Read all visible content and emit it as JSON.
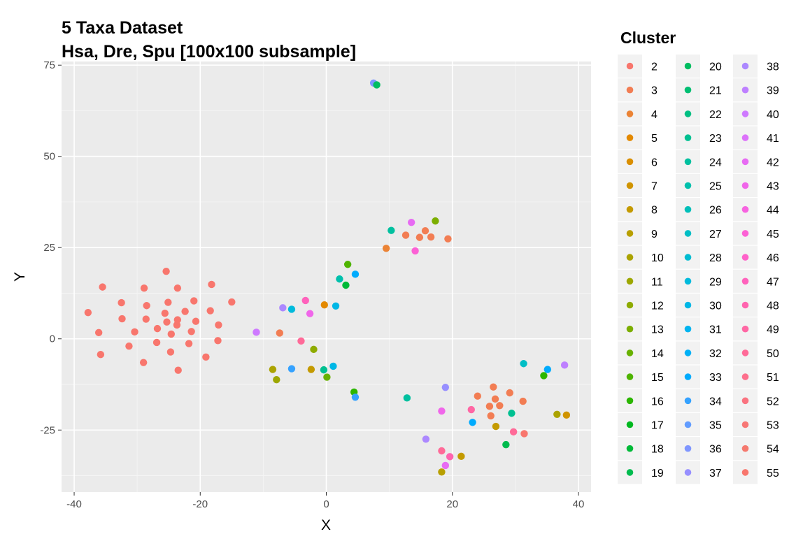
{
  "chart_data": {
    "type": "scatter",
    "title": "5 Taxa Dataset",
    "subtitle": "Hsa, Dre, Spu [100x100 subsample]",
    "xlabel": "X",
    "ylabel": "Y",
    "xlim": [
      -42,
      42
    ],
    "ylim": [
      -42,
      76
    ],
    "xticks": [
      -40,
      -20,
      0,
      20,
      40
    ],
    "yticks": [
      -25,
      0,
      25,
      50,
      75
    ],
    "grid": true,
    "legend_title": "Cluster",
    "legend_placement": "right",
    "clusters": [
      {
        "name": "2",
        "color": "#F8766D"
      },
      {
        "name": "3",
        "color": "#F27D53"
      },
      {
        "name": "4",
        "color": "#EB8335"
      },
      {
        "name": "5",
        "color": "#E38900"
      },
      {
        "name": "6",
        "color": "#DA8F00"
      },
      {
        "name": "7",
        "color": "#D09400"
      },
      {
        "name": "8",
        "color": "#C49A00"
      },
      {
        "name": "9",
        "color": "#B89F00"
      },
      {
        "name": "10",
        "color": "#ABA300"
      },
      {
        "name": "11",
        "color": "#9DA700"
      },
      {
        "name": "12",
        "color": "#8EAB00"
      },
      {
        "name": "13",
        "color": "#7CAE00"
      },
      {
        "name": "14",
        "color": "#68B100"
      },
      {
        "name": "15",
        "color": "#4FB400"
      },
      {
        "name": "16",
        "color": "#2CB600"
      },
      {
        "name": "17",
        "color": "#00B81F"
      },
      {
        "name": "18",
        "color": "#00BA38"
      },
      {
        "name": "19",
        "color": "#00BB4E"
      },
      {
        "name": "20",
        "color": "#00BD61"
      },
      {
        "name": "21",
        "color": "#00BE72"
      },
      {
        "name": "22",
        "color": "#00BF82"
      },
      {
        "name": "23",
        "color": "#00C091"
      },
      {
        "name": "24",
        "color": "#00C09F"
      },
      {
        "name": "25",
        "color": "#00C0AC"
      },
      {
        "name": "26",
        "color": "#00BFB9"
      },
      {
        "name": "27",
        "color": "#00BEC5"
      },
      {
        "name": "28",
        "color": "#00BCD1"
      },
      {
        "name": "29",
        "color": "#00BADC"
      },
      {
        "name": "30",
        "color": "#00B7E6"
      },
      {
        "name": "31",
        "color": "#00B4F0"
      },
      {
        "name": "32",
        "color": "#00B0F6"
      },
      {
        "name": "33",
        "color": "#00ABFD"
      },
      {
        "name": "34",
        "color": "#35A2FF"
      },
      {
        "name": "35",
        "color": "#619CFF"
      },
      {
        "name": "36",
        "color": "#7F96FF"
      },
      {
        "name": "37",
        "color": "#978FFF"
      },
      {
        "name": "38",
        "color": "#AC88FF"
      },
      {
        "name": "39",
        "color": "#BE80FF"
      },
      {
        "name": "40",
        "color": "#CE79FF"
      },
      {
        "name": "41",
        "color": "#DC71FA"
      },
      {
        "name": "42",
        "color": "#E76BF3"
      },
      {
        "name": "43",
        "color": "#F066EA"
      },
      {
        "name": "44",
        "color": "#F763E0"
      },
      {
        "name": "45",
        "color": "#FC61D5"
      },
      {
        "name": "46",
        "color": "#FF61C9"
      },
      {
        "name": "47",
        "color": "#FF62BC"
      },
      {
        "name": "48",
        "color": "#FF64AF"
      },
      {
        "name": "49",
        "color": "#FF67A4"
      },
      {
        "name": "50",
        "color": "#FF6A98"
      },
      {
        "name": "51",
        "color": "#FD6F8C"
      },
      {
        "name": "52",
        "color": "#FA7380"
      },
      {
        "name": "53",
        "color": "#F77775"
      },
      {
        "name": "54",
        "color": "#F5796E"
      },
      {
        "name": "55",
        "color": "#F8766D"
      }
    ],
    "points": [
      {
        "x": -37.8,
        "y": 7.2,
        "c": "#F8766D"
      },
      {
        "x": -35.5,
        "y": 14.2,
        "c": "#F8766D"
      },
      {
        "x": -35.8,
        "y": -4.3,
        "c": "#F8766D"
      },
      {
        "x": -36.1,
        "y": 1.7,
        "c": "#F8766D"
      },
      {
        "x": -32.5,
        "y": 9.9,
        "c": "#F8766D"
      },
      {
        "x": -32.4,
        "y": 5.5,
        "c": "#F8766D"
      },
      {
        "x": -31.3,
        "y": -2.0,
        "c": "#F8766D"
      },
      {
        "x": -30.4,
        "y": 1.9,
        "c": "#F8766D"
      },
      {
        "x": -28.9,
        "y": 13.9,
        "c": "#F8766D"
      },
      {
        "x": -28.5,
        "y": 9.1,
        "c": "#F8766D"
      },
      {
        "x": -28.6,
        "y": 5.4,
        "c": "#F8766D"
      },
      {
        "x": -29.0,
        "y": -6.5,
        "c": "#F8766D"
      },
      {
        "x": -26.8,
        "y": 2.8,
        "c": "#F8766D"
      },
      {
        "x": -26.9,
        "y": -1.0,
        "c": "#F8766D"
      },
      {
        "x": -25.6,
        "y": 7.0,
        "c": "#F8766D"
      },
      {
        "x": -25.1,
        "y": 10.0,
        "c": "#F8766D"
      },
      {
        "x": -25.3,
        "y": 4.6,
        "c": "#F8766D"
      },
      {
        "x": -25.4,
        "y": 18.5,
        "c": "#F8766D"
      },
      {
        "x": -24.6,
        "y": 1.3,
        "c": "#F8766D"
      },
      {
        "x": -24.7,
        "y": -3.6,
        "c": "#F8766D"
      },
      {
        "x": -23.6,
        "y": 13.9,
        "c": "#F8766D"
      },
      {
        "x": -23.6,
        "y": 5.2,
        "c": "#F8766D"
      },
      {
        "x": -23.7,
        "y": 3.8,
        "c": "#F8766D"
      },
      {
        "x": -23.5,
        "y": -8.6,
        "c": "#F8766D"
      },
      {
        "x": -22.4,
        "y": 7.5,
        "c": "#F8766D"
      },
      {
        "x": -21.8,
        "y": -1.3,
        "c": "#F8766D"
      },
      {
        "x": -21.4,
        "y": 2.0,
        "c": "#F8766D"
      },
      {
        "x": -21.0,
        "y": 10.4,
        "c": "#F8766D"
      },
      {
        "x": -20.7,
        "y": 4.8,
        "c": "#F8766D"
      },
      {
        "x": -19.1,
        "y": -5.0,
        "c": "#F8766D"
      },
      {
        "x": -18.4,
        "y": 7.7,
        "c": "#F8766D"
      },
      {
        "x": -18.2,
        "y": 14.9,
        "c": "#F8766D"
      },
      {
        "x": -17.1,
        "y": 3.8,
        "c": "#F8766D"
      },
      {
        "x": -17.2,
        "y": -0.5,
        "c": "#F8766D"
      },
      {
        "x": -15.0,
        "y": 10.1,
        "c": "#F8766D"
      },
      {
        "x": -11.1,
        "y": 1.8,
        "c": "#CE79FF"
      },
      {
        "x": -7.4,
        "y": 1.6,
        "c": "#F27D53"
      },
      {
        "x": -6.9,
        "y": 8.5,
        "c": "#AC88FF"
      },
      {
        "x": -5.5,
        "y": 8.1,
        "c": "#00BADC"
      },
      {
        "x": -3.3,
        "y": 10.5,
        "c": "#FF62BC"
      },
      {
        "x": -2.6,
        "y": 6.9,
        "c": "#F066EA"
      },
      {
        "x": -4.0,
        "y": -0.6,
        "c": "#FF6A98"
      },
      {
        "x": -2.0,
        "y": -2.9,
        "c": "#8EAB00"
      },
      {
        "x": -8.5,
        "y": -8.4,
        "c": "#ABA300"
      },
      {
        "x": -7.9,
        "y": -11.2,
        "c": "#9DA700"
      },
      {
        "x": -5.5,
        "y": -8.2,
        "c": "#35A2FF"
      },
      {
        "x": -2.4,
        "y": -8.4,
        "c": "#C49A00"
      },
      {
        "x": -0.3,
        "y": 9.3,
        "c": "#E38900"
      },
      {
        "x": -0.4,
        "y": -8.5,
        "c": "#00C091"
      },
      {
        "x": 0.1,
        "y": -10.5,
        "c": "#68B100"
      },
      {
        "x": 1.1,
        "y": -7.5,
        "c": "#00B7E6"
      },
      {
        "x": 1.5,
        "y": 9.0,
        "c": "#00B7E6"
      },
      {
        "x": 2.1,
        "y": 16.4,
        "c": "#00C0AC"
      },
      {
        "x": 3.1,
        "y": 14.7,
        "c": "#00BA38"
      },
      {
        "x": 3.4,
        "y": 20.4,
        "c": "#4FB400"
      },
      {
        "x": 4.6,
        "y": 17.7,
        "c": "#00ABFD"
      },
      {
        "x": 4.4,
        "y": -14.6,
        "c": "#2CB600"
      },
      {
        "x": 4.6,
        "y": -16.0,
        "c": "#35A2FF"
      },
      {
        "x": 7.5,
        "y": 70.1,
        "c": "#7F96FF"
      },
      {
        "x": 8.0,
        "y": 69.6,
        "c": "#00BD61"
      },
      {
        "x": 9.5,
        "y": 24.8,
        "c": "#EB8335"
      },
      {
        "x": 10.3,
        "y": 29.7,
        "c": "#00C09F"
      },
      {
        "x": 12.6,
        "y": 28.4,
        "c": "#F27D53"
      },
      {
        "x": 12.8,
        "y": -16.2,
        "c": "#00C09F"
      },
      {
        "x": 13.5,
        "y": 31.9,
        "c": "#E76BF3"
      },
      {
        "x": 14.1,
        "y": 24.1,
        "c": "#FC61D5"
      },
      {
        "x": 14.8,
        "y": 27.8,
        "c": "#F27D53"
      },
      {
        "x": 15.7,
        "y": 29.6,
        "c": "#F27D53"
      },
      {
        "x": 16.6,
        "y": 27.9,
        "c": "#F27D53"
      },
      {
        "x": 17.3,
        "y": 32.3,
        "c": "#7CAE00"
      },
      {
        "x": 19.3,
        "y": 27.4,
        "c": "#F27D53"
      },
      {
        "x": 18.9,
        "y": -13.3,
        "c": "#978FFF"
      },
      {
        "x": 18.3,
        "y": -19.8,
        "c": "#F066EA"
      },
      {
        "x": 15.8,
        "y": -27.5,
        "c": "#AC88FF"
      },
      {
        "x": 18.3,
        "y": -30.7,
        "c": "#FF6A98"
      },
      {
        "x": 19.6,
        "y": -32.3,
        "c": "#FF64AF"
      },
      {
        "x": 18.9,
        "y": -34.7,
        "c": "#E76BF3"
      },
      {
        "x": 18.3,
        "y": -36.5,
        "c": "#B89F00"
      },
      {
        "x": 21.4,
        "y": -32.2,
        "c": "#C49A00"
      },
      {
        "x": 23.0,
        "y": -19.4,
        "c": "#FF67A4"
      },
      {
        "x": 23.2,
        "y": -22.9,
        "c": "#00ABFD"
      },
      {
        "x": 24.0,
        "y": -15.7,
        "c": "#F27D53"
      },
      {
        "x": 25.9,
        "y": -18.5,
        "c": "#F27D53"
      },
      {
        "x": 26.1,
        "y": -21.1,
        "c": "#F27D53"
      },
      {
        "x": 26.5,
        "y": -13.2,
        "c": "#F27D53"
      },
      {
        "x": 26.8,
        "y": -16.5,
        "c": "#F27D53"
      },
      {
        "x": 26.9,
        "y": -24.0,
        "c": "#C49A00"
      },
      {
        "x": 27.5,
        "y": -18.3,
        "c": "#F27D53"
      },
      {
        "x": 28.5,
        "y": -29.0,
        "c": "#00BB4E"
      },
      {
        "x": 29.1,
        "y": -14.8,
        "c": "#F27D53"
      },
      {
        "x": 29.4,
        "y": -20.4,
        "c": "#00C091"
      },
      {
        "x": 29.7,
        "y": -25.5,
        "c": "#FF6A98"
      },
      {
        "x": 31.2,
        "y": -17.1,
        "c": "#F27D53"
      },
      {
        "x": 31.3,
        "y": -6.8,
        "c": "#00BEC5"
      },
      {
        "x": 31.4,
        "y": -26.0,
        "c": "#F8766D"
      },
      {
        "x": 34.5,
        "y": -10.1,
        "c": "#2CB600"
      },
      {
        "x": 35.1,
        "y": -8.4,
        "c": "#00ABFD"
      },
      {
        "x": 36.6,
        "y": -20.7,
        "c": "#ABA300"
      },
      {
        "x": 37.8,
        "y": -7.2,
        "c": "#BE80FF"
      },
      {
        "x": 38.1,
        "y": -20.9,
        "c": "#D09400"
      }
    ]
  }
}
